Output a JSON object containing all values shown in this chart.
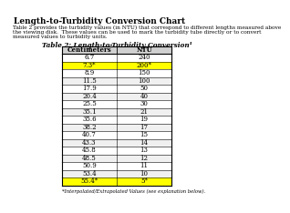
{
  "title": "Length-to-Turbidity Conversion Chart",
  "description1": "Table 2 provides the turbidity values (in NTU) that correspond to different lengths measured above",
  "description2": "the viewing disk.  These values can be used to mark the turbidity tube directly or to convert",
  "description3": "measured values to turbidity units.",
  "table_title": "Table 2: Length-to-Turbidity Conversion¹",
  "col_headers": [
    "Centimeters",
    "NTU"
  ],
  "rows": [
    [
      "6.7",
      "240"
    ],
    [
      "7.3*",
      "200*"
    ],
    [
      "8.9",
      "150"
    ],
    [
      "11.5",
      "100"
    ],
    [
      "17.9",
      "50"
    ],
    [
      "20.4",
      "40"
    ],
    [
      "25.5",
      "30"
    ],
    [
      "35.1",
      "21"
    ],
    [
      "35.6",
      "19"
    ],
    [
      "38.2",
      "17"
    ],
    [
      "40.7",
      "15"
    ],
    [
      "43.3",
      "14"
    ],
    [
      "45.8",
      "13"
    ],
    [
      "48.5",
      "12"
    ],
    [
      "50.9",
      "11"
    ],
    [
      "53.4",
      "10"
    ],
    [
      "55.4*",
      "5*"
    ]
  ],
  "highlight_rows": [
    1,
    16
  ],
  "highlight_color": "#FFFF00",
  "footnote": "*Interpolated/Extrapolated Values (see explanation below).",
  "background": "#ffffff",
  "header_bg": "#d0d0d0",
  "font_size": 5.0,
  "title_font_size": 6.5,
  "desc_font_size": 4.2,
  "table_title_font_size": 5.2
}
